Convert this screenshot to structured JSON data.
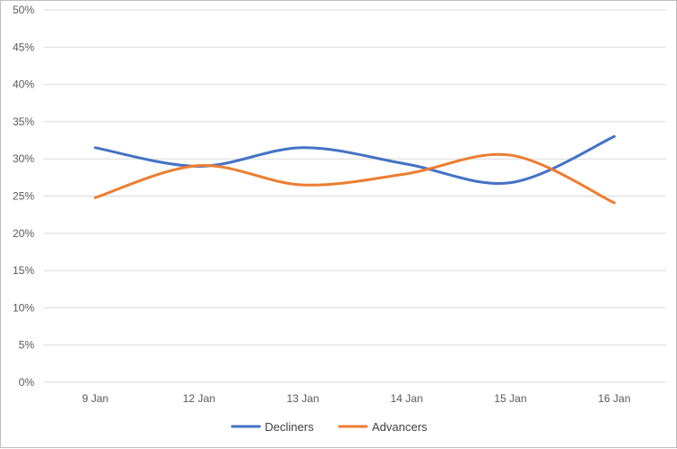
{
  "chart_data": {
    "type": "line",
    "categories": [
      "9 Jan",
      "12 Jan",
      "13 Jan",
      "14 Jan",
      "15 Jan",
      "16 Jan"
    ],
    "series": [
      {
        "name": "Decliners",
        "values": [
          31.5,
          29.0,
          31.5,
          29.3,
          26.8,
          33.0
        ],
        "color": "#4472C4"
      },
      {
        "name": "Advancers",
        "values": [
          24.8,
          29.1,
          26.5,
          28.0,
          30.5,
          24.1
        ],
        "color": "#ED7D31"
      }
    ],
    "y_ticks": [
      "0%",
      "5%",
      "10%",
      "15%",
      "20%",
      "25%",
      "30%",
      "35%",
      "40%",
      "45%",
      "50%"
    ],
    "ylim": [
      0,
      50
    ],
    "grid": true,
    "legend_position": "bottom",
    "smooth": true
  }
}
